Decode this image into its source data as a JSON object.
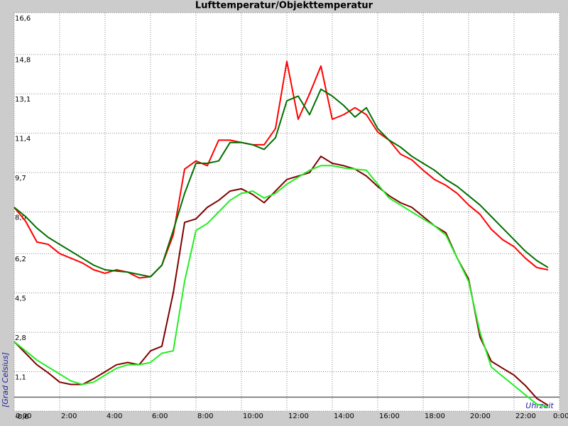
{
  "chart_data": {
    "type": "line",
    "title": "Lufttemperatur/Objekttemperatur",
    "y_label": "[Grad Celsius]",
    "x_label": "Uhrzeit",
    "xlim": [
      0,
      24
    ],
    "xticks": [
      {
        "value": 0,
        "label": "0:00"
      },
      {
        "value": 2,
        "label": "2:00"
      },
      {
        "value": 4,
        "label": "4:00"
      },
      {
        "value": 6,
        "label": "6:00"
      },
      {
        "value": 8,
        "label": "8:00"
      },
      {
        "value": 10,
        "label": "10:00"
      },
      {
        "value": 12,
        "label": "12:00"
      },
      {
        "value": 14,
        "label": "14:00"
      },
      {
        "value": 16,
        "label": "16:00"
      },
      {
        "value": 18,
        "label": "18:00"
      },
      {
        "value": 20,
        "label": "20:00"
      },
      {
        "value": 22,
        "label": "22:00"
      },
      {
        "value": 24,
        "label": "0:00"
      }
    ],
    "ylim": [
      -0.6,
      16.6
    ],
    "yticks": [
      {
        "value": -0.6,
        "label": "-0,6"
      },
      {
        "value": 1.1,
        "label": "1,1"
      },
      {
        "value": 2.8,
        "label": "2,8"
      },
      {
        "value": 4.5,
        "label": "4,5"
      },
      {
        "value": 6.2,
        "label": "6,2"
      },
      {
        "value": 8.0,
        "label": "8,0"
      },
      {
        "value": 9.7,
        "label": "9,7"
      },
      {
        "value": 11.4,
        "label": "11,4"
      },
      {
        "value": 13.1,
        "label": "13,1"
      },
      {
        "value": 14.8,
        "label": "14,8"
      },
      {
        "value": 16.6,
        "label": "16,6"
      }
    ],
    "grid": true,
    "x": [
      0,
      0.5,
      1,
      1.5,
      2,
      2.5,
      3,
      3.5,
      4,
      4.5,
      5,
      5.5,
      6,
      6.5,
      7,
      7.5,
      8,
      8.5,
      9,
      9.5,
      10,
      10.5,
      11,
      11.5,
      12,
      12.5,
      13,
      13.5,
      14,
      14.5,
      15,
      15.5,
      16,
      16.5,
      17,
      17.5,
      18,
      18.5,
      19,
      19.5,
      20,
      20.5,
      21,
      21.5,
      22,
      22.5,
      23,
      23.5
    ],
    "series": [
      {
        "color": "#ff0000",
        "values": [
          8.2,
          7.6,
          6.7,
          6.6,
          6.2,
          6.0,
          5.8,
          5.5,
          5.35,
          5.5,
          5.4,
          5.15,
          5.2,
          5.7,
          7.0,
          9.85,
          10.2,
          10.0,
          11.1,
          11.1,
          11.0,
          10.9,
          10.9,
          11.6,
          14.5,
          12.0,
          13.1,
          14.3,
          12.0,
          12.2,
          12.5,
          12.2,
          11.45,
          11.1,
          10.5,
          10.25,
          9.8,
          9.4,
          9.15,
          8.8,
          8.3,
          7.9,
          7.25,
          6.8,
          6.5,
          6.0,
          5.6,
          5.5
        ]
      },
      {
        "color": "#007000",
        "values": [
          8.2,
          7.8,
          7.3,
          6.9,
          6.6,
          6.3,
          6.0,
          5.7,
          5.5,
          5.45,
          5.4,
          5.3,
          5.2,
          5.7,
          7.2,
          8.8,
          10.1,
          10.1,
          10.2,
          11.0,
          11.0,
          10.9,
          10.7,
          11.2,
          12.8,
          13.0,
          12.2,
          13.3,
          13.0,
          12.6,
          12.1,
          12.5,
          11.6,
          11.1,
          10.8,
          10.4,
          10.1,
          9.8,
          9.4,
          9.1,
          8.7,
          8.3,
          7.8,
          7.3,
          6.8,
          6.3,
          5.9,
          5.6
        ]
      },
      {
        "color": "#800000",
        "values": [
          2.4,
          1.9,
          1.4,
          1.05,
          0.65,
          0.55,
          0.55,
          0.8,
          1.1,
          1.4,
          1.5,
          1.4,
          2.0,
          2.2,
          4.5,
          7.55,
          7.7,
          8.2,
          8.5,
          8.9,
          9.0,
          8.75,
          8.4,
          8.9,
          9.4,
          9.55,
          9.7,
          10.4,
          10.1,
          10.0,
          9.85,
          9.55,
          9.1,
          8.7,
          8.4,
          8.2,
          7.8,
          7.4,
          7.1,
          6.0,
          5.1,
          2.6,
          1.55,
          1.25,
          0.95,
          0.5,
          -0.05,
          -0.35
        ]
      },
      {
        "color": "#22ee22",
        "values": [
          2.4,
          2.0,
          1.6,
          1.3,
          1.0,
          0.7,
          0.55,
          0.65,
          0.95,
          1.25,
          1.4,
          1.4,
          1.5,
          1.9,
          2.0,
          5.0,
          7.2,
          7.5,
          8.0,
          8.5,
          8.8,
          8.9,
          8.6,
          8.8,
          9.2,
          9.5,
          9.8,
          10.0,
          10.0,
          9.9,
          9.85,
          9.8,
          9.2,
          8.6,
          8.3,
          8.0,
          7.7,
          7.4,
          7.0,
          6.0,
          5.0,
          2.8,
          1.3,
          0.9,
          0.5,
          0.1,
          -0.3,
          -0.45
        ]
      }
    ]
  }
}
